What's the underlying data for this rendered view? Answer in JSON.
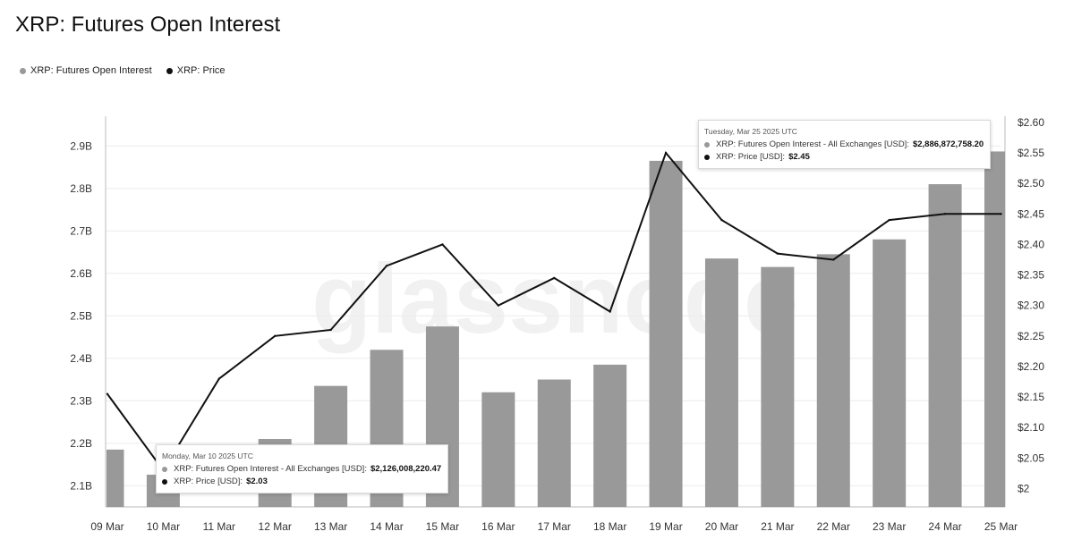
{
  "title": "XRP: Futures Open Interest",
  "legend": [
    {
      "label": "XRP: Futures Open Interest",
      "color": "#999999"
    },
    {
      "label": "XRP: Price",
      "color": "#111111"
    }
  ],
  "watermark": "glassnode",
  "chart_data": {
    "type": "bar",
    "categories": [
      "09 Mar",
      "10 Mar",
      "11 Mar",
      "12 Mar",
      "13 Mar",
      "14 Mar",
      "15 Mar",
      "16 Mar",
      "17 Mar",
      "18 Mar",
      "19 Mar",
      "20 Mar",
      "21 Mar",
      "22 Mar",
      "23 Mar",
      "24 Mar",
      "25 Mar"
    ],
    "series": [
      {
        "name": "XRP: Futures Open Interest",
        "type": "bar",
        "axis": "left",
        "color": "#999999",
        "values": [
          2.185,
          2.126,
          2.05,
          2.21,
          2.335,
          2.42,
          2.475,
          2.32,
          2.35,
          2.385,
          2.865,
          2.635,
          2.615,
          2.645,
          2.68,
          2.81,
          2.887
        ]
      },
      {
        "name": "XRP: Price",
        "type": "line",
        "axis": "right",
        "color": "#111111",
        "values": [
          2.155,
          2.03,
          2.18,
          2.25,
          2.26,
          2.365,
          2.4,
          2.3,
          2.345,
          2.29,
          2.55,
          2.44,
          2.385,
          2.375,
          2.44,
          2.45,
          2.45
        ]
      }
    ],
    "y_left": {
      "ylim": [
        2.05,
        2.97
      ],
      "ticks": [
        2.1,
        2.2,
        2.3,
        2.4,
        2.5,
        2.6,
        2.7,
        2.8,
        2.9
      ],
      "tick_labels": [
        "2.1B",
        "2.2B",
        "2.3B",
        "2.4B",
        "2.5B",
        "2.6B",
        "2.7B",
        "2.8B",
        "2.9B"
      ]
    },
    "y_right": {
      "ylim": [
        1.97,
        2.61
      ],
      "ticks": [
        2.0,
        2.05,
        2.1,
        2.15,
        2.2,
        2.25,
        2.3,
        2.35,
        2.4,
        2.45,
        2.5,
        2.55,
        2.6
      ],
      "tick_labels": [
        "$2",
        "$2.05",
        "$2.10",
        "$2.15",
        "$2.20",
        "$2.25",
        "$2.30",
        "$2.35",
        "$2.40",
        "$2.45",
        "$2.50",
        "$2.55",
        "$2.60"
      ]
    },
    "grid": true
  },
  "tooltips": [
    {
      "date": "Monday, Mar 10 2025 UTC",
      "rows": [
        {
          "label": "XRP: Futures Open Interest - All Exchanges [USD]:",
          "value": "$2,126,008,220.47",
          "color": "#999999"
        },
        {
          "label": "XRP: Price [USD]:",
          "value": "$2.03",
          "color": "#111111"
        }
      ]
    },
    {
      "date": "Tuesday, Mar 25 2025 UTC",
      "rows": [
        {
          "label": "XRP: Futures Open Interest - All Exchanges [USD]:",
          "value": "$2,886,872,758.20",
          "color": "#999999"
        },
        {
          "label": "XRP: Price [USD]:",
          "value": "$2.45",
          "color": "#111111"
        }
      ]
    }
  ]
}
